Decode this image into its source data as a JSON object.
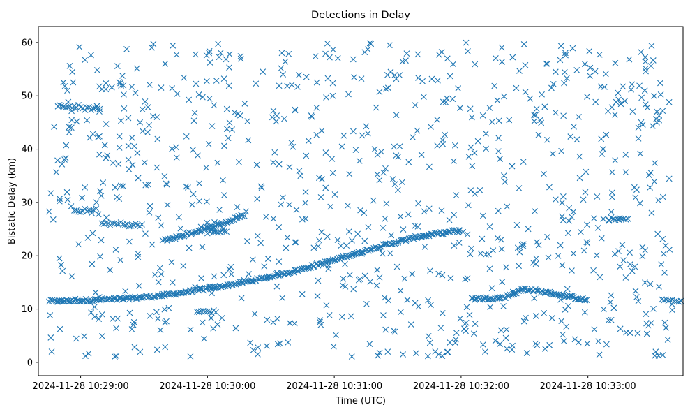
{
  "chart_data": {
    "type": "scatter",
    "title": "Detections in Delay",
    "xlabel": "Time (UTC)",
    "ylabel": "Bistatic Delay (km)",
    "marker": "x",
    "color": "#1f77b4",
    "xlim": [
      "2024-11-28 10:28:40",
      "2024-11-28 10:33:45"
    ],
    "ylim": [
      -2.5,
      63
    ],
    "x_ticks": [
      "2024-11-28 10:29:00",
      "2024-11-28 10:30:00",
      "2024-11-28 10:31:00",
      "2024-11-28 10:32:00",
      "2024-11-28 10:33:00"
    ],
    "y_ticks": [
      0,
      10,
      20,
      30,
      40,
      50,
      60
    ],
    "grid": false,
    "tracks": [
      {
        "description": "main rising track",
        "points": [
          [
            "2024-11-28 10:28:45",
            11.5
          ],
          [
            "2024-11-28 10:29:00",
            11.6
          ],
          [
            "2024-11-28 10:29:20",
            11.9
          ],
          [
            "2024-11-28 10:29:40",
            12.6
          ],
          [
            "2024-11-28 10:30:00",
            13.8
          ],
          [
            "2024-11-28 10:30:20",
            15.2
          ],
          [
            "2024-11-28 10:30:40",
            17.0
          ],
          [
            "2024-11-28 10:31:00",
            19.2
          ],
          [
            "2024-11-28 10:31:20",
            21.6
          ],
          [
            "2024-11-28 10:31:40",
            23.6
          ],
          [
            "2024-11-28 10:32:00",
            24.8
          ]
        ]
      },
      {
        "description": "upper rising track",
        "points": [
          [
            "2024-11-28 10:29:39",
            22.8
          ],
          [
            "2024-11-28 10:29:50",
            24.0
          ],
          [
            "2024-11-28 10:30:00",
            25.2
          ],
          [
            "2024-11-28 10:30:10",
            26.4
          ],
          [
            "2024-11-28 10:30:18",
            27.8
          ]
        ]
      },
      {
        "description": "late low track",
        "points": [
          [
            "2024-11-28 10:32:05",
            11.9
          ],
          [
            "2024-11-28 10:32:20",
            12.1
          ],
          [
            "2024-11-28 10:32:30",
            13.8
          ],
          [
            "2024-11-28 10:32:45",
            12.8
          ],
          [
            "2024-11-28 10:33:00",
            11.6
          ]
        ]
      },
      {
        "description": "short flat segments",
        "points": [
          [
            "2024-11-28 10:28:55",
            48.0
          ],
          [
            "2024-11-28 10:29:05",
            47.6
          ],
          [
            "2024-11-28 10:29:02",
            28.5
          ],
          [
            "2024-11-28 10:29:15",
            26.0
          ],
          [
            "2024-11-28 10:29:25",
            25.8
          ],
          [
            "2024-11-28 10:30:05",
            24.5
          ],
          [
            "2024-11-28 10:30:00",
            9.5
          ],
          [
            "2024-11-28 10:33:15",
            26.9
          ],
          [
            "2024-11-28 10:33:40",
            11.6
          ]
        ]
      }
    ],
    "scatter_noise": {
      "description": "uniformly scattered false detections across the full time span and 0-60 km delay range"
    }
  }
}
